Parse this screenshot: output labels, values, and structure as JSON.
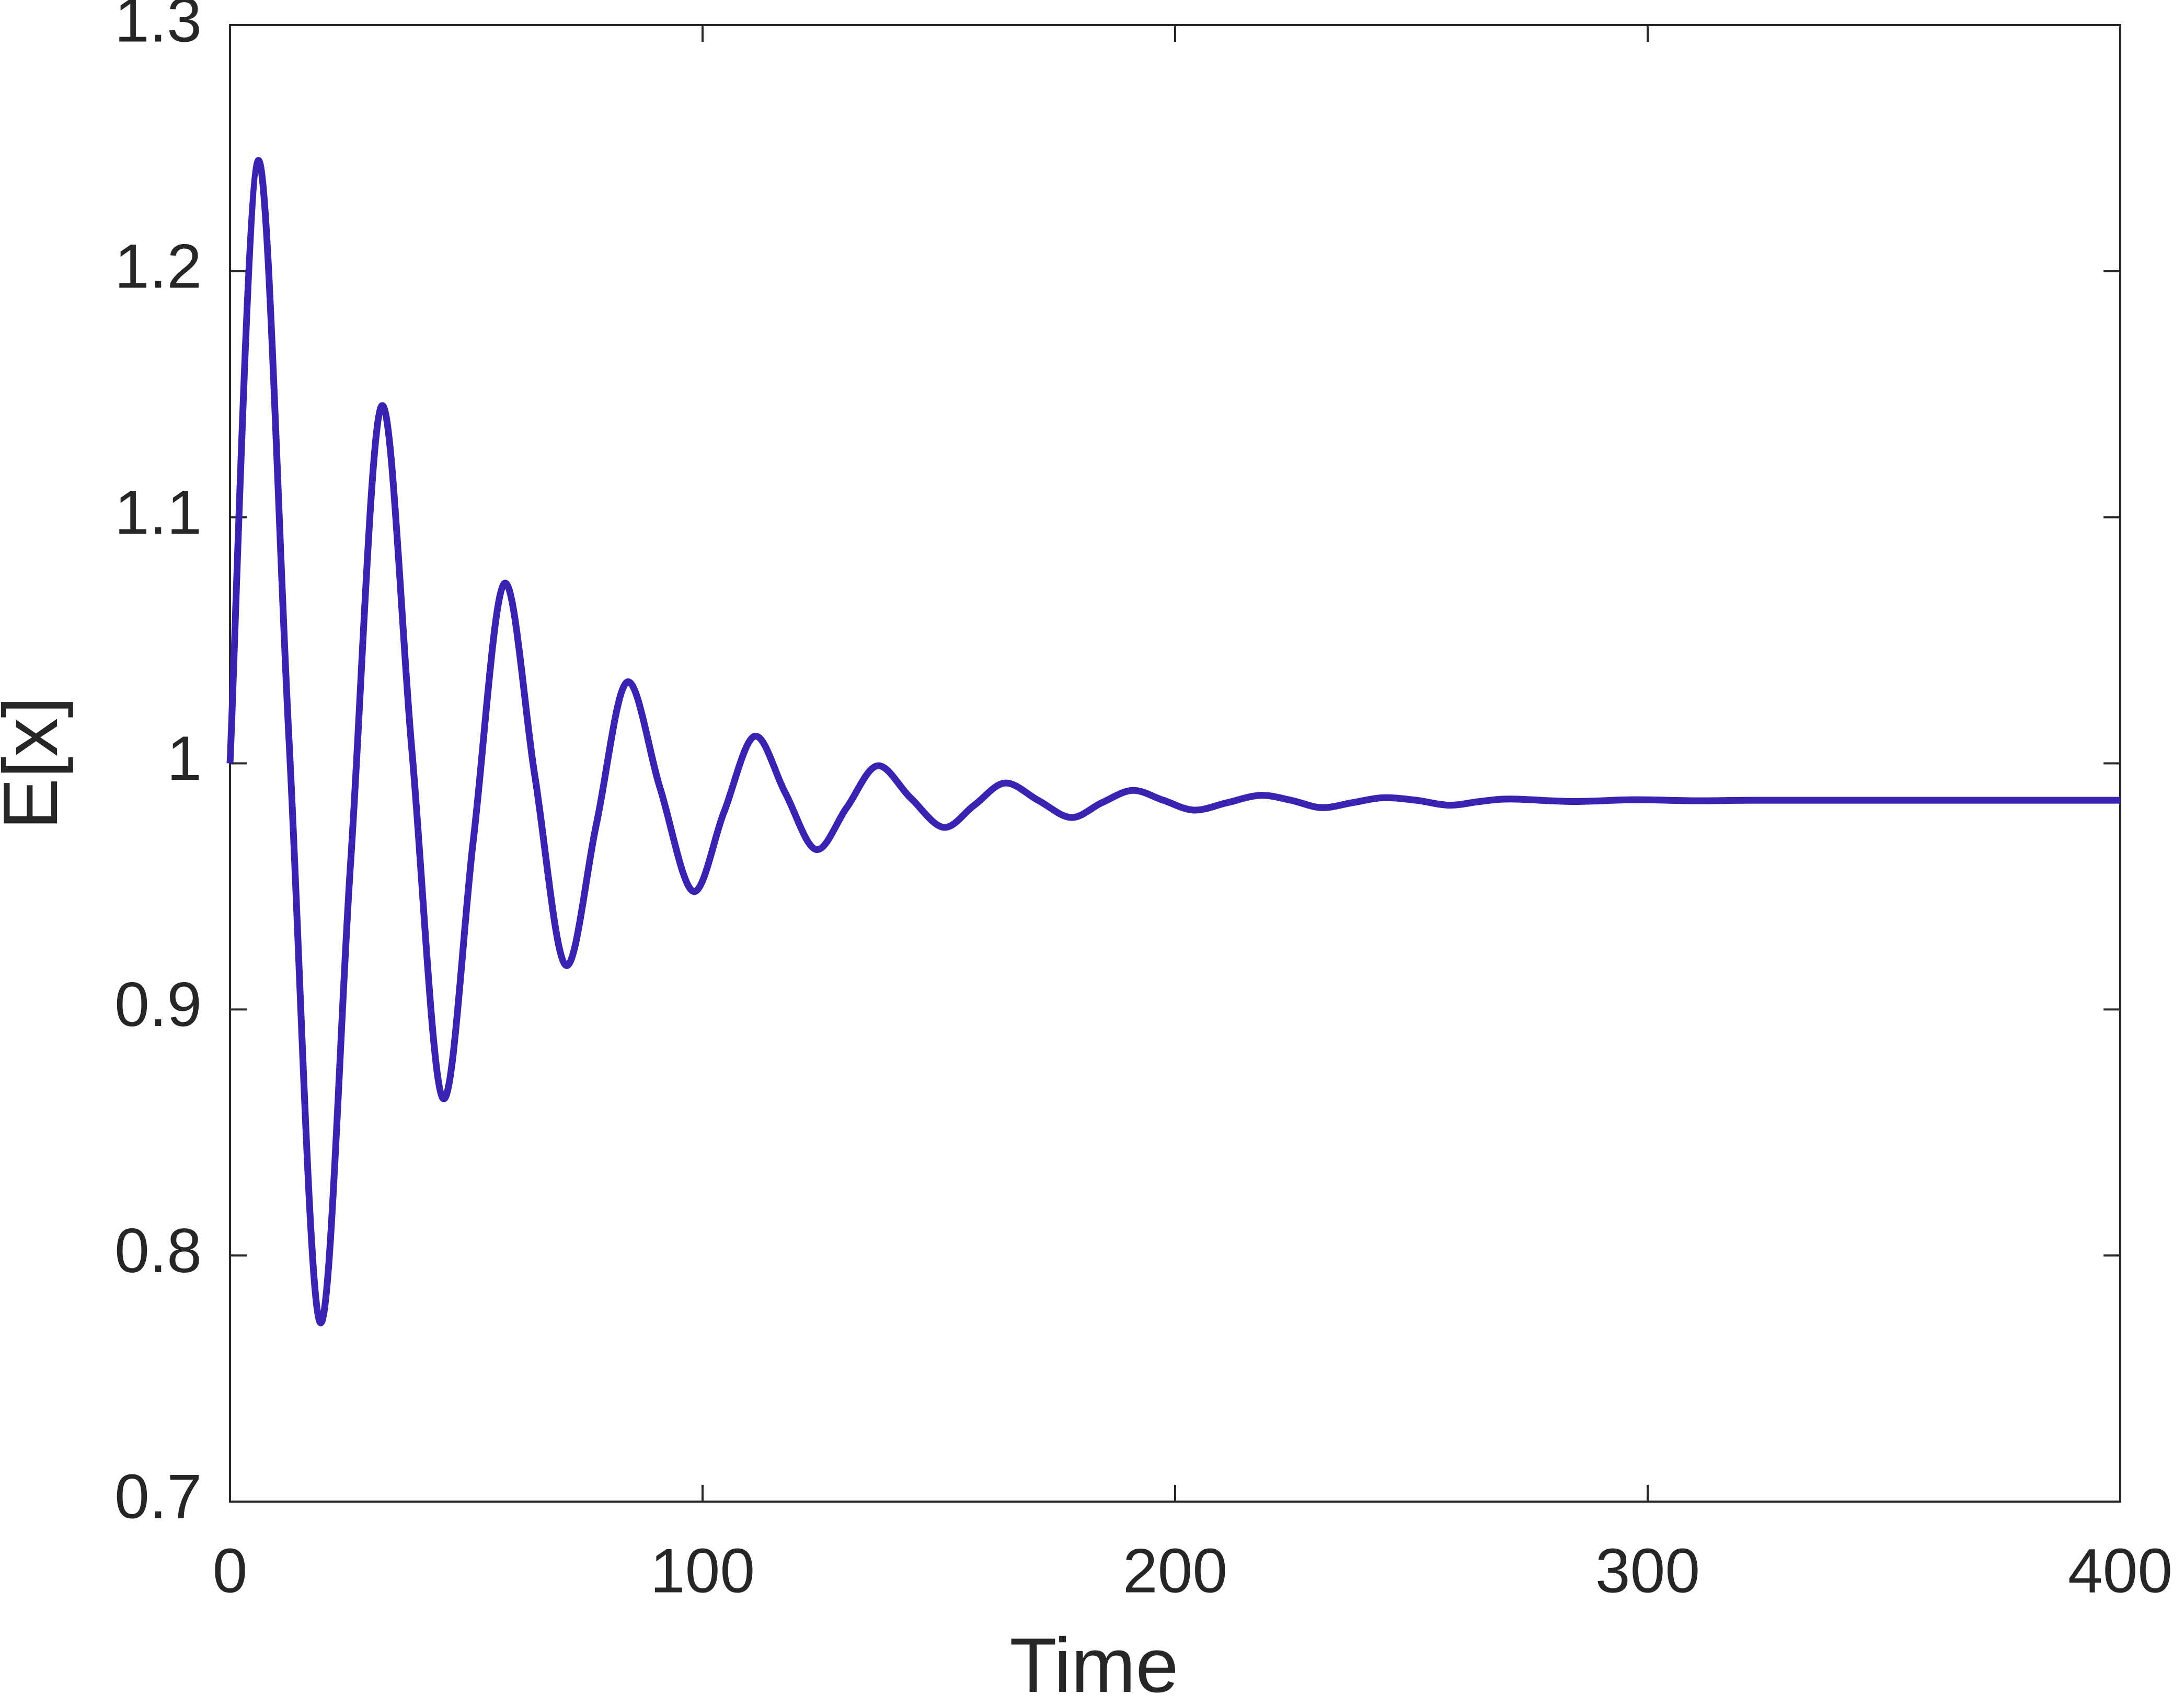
{
  "chart_data": {
    "type": "line",
    "xlabel": "Time",
    "ylabel": "E[x]",
    "x": [
      0,
      6,
      12.5,
      19,
      25.5,
      32,
      38.5,
      45,
      51.5,
      58,
      64.5,
      71,
      77.5,
      84,
      91,
      98,
      104.5,
      111,
      117.5,
      124,
      130.5,
      137,
      144,
      151,
      157.5,
      164,
      171,
      178,
      184.5,
      191,
      197.5,
      204,
      211,
      218,
      224.5,
      231,
      237.5,
      244,
      251,
      258,
      264.5,
      271,
      284,
      297,
      310,
      323,
      350,
      375,
      400
    ],
    "series": [
      {
        "color": "#3b22b0",
        "values": [
          1.0,
          1.245,
          1.009,
          0.773,
          0.959,
          1.145,
          1.005,
          0.864,
          0.969,
          1.073,
          0.995,
          0.918,
          0.975,
          1.033,
          0.99,
          0.948,
          0.98,
          1.011,
          0.988,
          0.965,
          0.982,
          0.999,
          0.986,
          0.974,
          0.983,
          0.992,
          0.985,
          0.978,
          0.984,
          0.989,
          0.985,
          0.981,
          0.984,
          0.987,
          0.985,
          0.982,
          0.984,
          0.986,
          0.985,
          0.983,
          0.9845,
          0.9855,
          0.9845,
          0.9852,
          0.9848,
          0.985,
          0.985,
          0.985,
          0.985
        ]
      }
    ],
    "xlim": [
      0,
      400
    ],
    "xticks": [
      0,
      100,
      200,
      300,
      400
    ],
    "ylim": [
      0.7,
      1.3
    ],
    "yticks": [
      0.7,
      0.8,
      0.9,
      1,
      1.1,
      1.2,
      1.3
    ],
    "grid": false
  }
}
